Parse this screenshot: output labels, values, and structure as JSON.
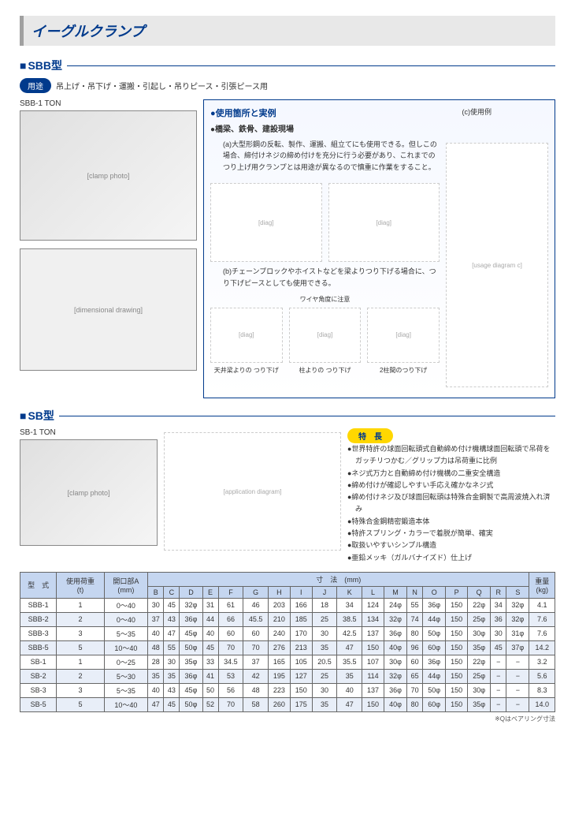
{
  "page_title": "イーグルクランプ",
  "sbb": {
    "section": "SBB型",
    "usage_label": "用途",
    "usage_text": "吊上げ・吊下げ・運搬・引起し・吊りピース・引張ピース用",
    "photo_label": "SBB-1 TON",
    "box_title": "●使用箇所と実例",
    "sub_title": "●橋梁、鉄骨、建設現場",
    "c_label": "(c)使用例",
    "desc_a": "(a)大型形鋼の反転、製作、運搬、組立てにも使用できる。但しこの場合、締付けネジの締め付けを充分に行う必要があり、これまでのつり上げ用クランプとは用途が異なるので慎重に作業をすること。",
    "desc_b": "(b)チェーンブロックやホイストなどを梁よりつり下げる場合に、つり下げピースとしても使用できる。",
    "wire_note": "ワイヤ角度に注意",
    "cap1": "天井梁よりの\nつり下げ",
    "cap2": "柱よりの\nつり下げ",
    "cap3": "2柱間のつり下げ"
  },
  "sb": {
    "section": "SB型",
    "photo_label": "SB-1 TON",
    "feat_label": "特　長",
    "bullets": [
      "●世界特許の球面回転頭式自動締め付け機構球面回転頭で吊荷をガッチリつかむ／グリップ力は吊荷重に比例",
      "●ネジ式万力と自動締め付け機構の二重安全構造",
      "●締め付けが確認しやすい手応え確かなネジ式",
      "●締め付けネジ及び球面回転頭は特殊合金鋼製で高周波焼入れ済み",
      "●特殊合金鋼精密鍛造本体",
      "●特許スプリング・カラーで着脱が簡単、確実",
      "●取扱いやすいシンプル構造",
      "●亜鉛メッキ（ガルバナイズド）仕上げ"
    ]
  },
  "table": {
    "headers": {
      "model": "型　式",
      "load": "使用荷重\n(t)",
      "openA": "開口部A\n(mm)",
      "dim": "寸　法　(mm)",
      "weight": "重量\n(kg)",
      "cols": [
        "B",
        "C",
        "D",
        "E",
        "F",
        "G",
        "H",
        "I",
        "J",
        "K",
        "L",
        "M",
        "N",
        "O",
        "P",
        "Q",
        "R",
        "S"
      ]
    },
    "rows": [
      {
        "m": "SBB-1",
        "l": "1",
        "a": "0～40",
        "d": [
          "30",
          "45",
          "32φ",
          "31",
          "61",
          "46",
          "203",
          "166",
          "18",
          "34",
          "124",
          "24φ",
          "55",
          "36φ",
          "150",
          "22φ",
          "34",
          "32φ"
        ],
        "w": "4.1"
      },
      {
        "m": "SBB-2",
        "l": "2",
        "a": "0～40",
        "d": [
          "37",
          "43",
          "36φ",
          "44",
          "66",
          "45.5",
          "210",
          "185",
          "25",
          "38.5",
          "134",
          "32φ",
          "74",
          "44φ",
          "150",
          "25φ",
          "36",
          "32φ"
        ],
        "w": "7.6"
      },
      {
        "m": "SBB-3",
        "l": "3",
        "a": "5～35",
        "d": [
          "40",
          "47",
          "45φ",
          "40",
          "60",
          "60",
          "240",
          "170",
          "30",
          "42.5",
          "137",
          "36φ",
          "80",
          "50φ",
          "150",
          "30φ",
          "30",
          "31φ"
        ],
        "w": "7.6"
      },
      {
        "m": "SBB-5",
        "l": "5",
        "a": "10～40",
        "d": [
          "48",
          "55",
          "50φ",
          "45",
          "70",
          "70",
          "276",
          "213",
          "35",
          "47",
          "150",
          "40φ",
          "96",
          "60φ",
          "150",
          "35φ",
          "45",
          "37φ"
        ],
        "w": "14.2"
      },
      {
        "m": "SB-1",
        "l": "1",
        "a": "0～25",
        "d": [
          "28",
          "30",
          "35φ",
          "33",
          "34.5",
          "37",
          "165",
          "105",
          "20.5",
          "35.5",
          "107",
          "30φ",
          "60",
          "36φ",
          "150",
          "22φ",
          "−",
          "−"
        ],
        "w": "3.2"
      },
      {
        "m": "SB-2",
        "l": "2",
        "a": "5～30",
        "d": [
          "35",
          "35",
          "36φ",
          "41",
          "53",
          "42",
          "195",
          "127",
          "25",
          "35",
          "114",
          "32φ",
          "65",
          "44φ",
          "150",
          "25φ",
          "−",
          "−"
        ],
        "w": "5.6"
      },
      {
        "m": "SB-3",
        "l": "3",
        "a": "5～35",
        "d": [
          "40",
          "43",
          "45φ",
          "50",
          "56",
          "48",
          "223",
          "150",
          "30",
          "40",
          "137",
          "36φ",
          "70",
          "50φ",
          "150",
          "30φ",
          "−",
          "−"
        ],
        "w": "8.3"
      },
      {
        "m": "SB-5",
        "l": "5",
        "a": "10～40",
        "d": [
          "47",
          "45",
          "50φ",
          "52",
          "70",
          "58",
          "260",
          "175",
          "35",
          "47",
          "150",
          "40φ",
          "80",
          "60φ",
          "150",
          "35φ",
          "−",
          "−"
        ],
        "w": "14.0"
      }
    ],
    "note": "※Qはベアリング寸法"
  }
}
